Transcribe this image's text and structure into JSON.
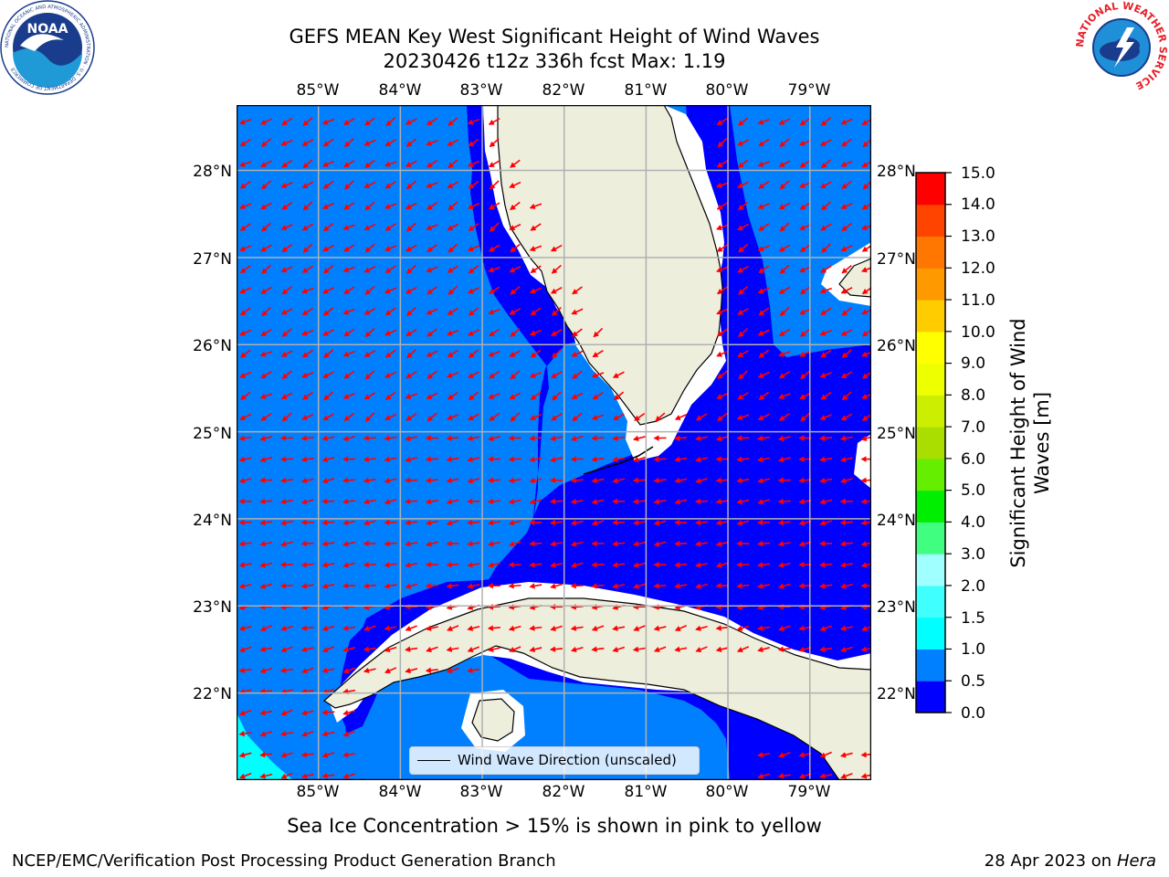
{
  "title": {
    "line1": "GEFS MEAN Key West Significant Height of Wind Waves",
    "line2": "20230426 t12z 336h fcst   Max: 1.19"
  },
  "axes": {
    "lon_labels": [
      "85°W",
      "84°W",
      "83°W",
      "82°W",
      "81°W",
      "80°W",
      "79°W"
    ],
    "lat_labels": [
      "28°N",
      "27°N",
      "26°N",
      "25°N",
      "24°N",
      "23°N",
      "22°N"
    ],
    "lon_range": [
      -86.0,
      -78.25
    ],
    "lat_range": [
      21.0,
      28.75
    ],
    "gridlines": true
  },
  "legend": {
    "label": "Wind Wave Direction (unscaled)"
  },
  "colorbar": {
    "label_line1": "Significant Height of Wind",
    "label_line2": "Waves [m]",
    "tick_labels": [
      "15.0",
      "14.0",
      "13.0",
      "12.0",
      "11.0",
      "10.0",
      "9.0",
      "8.0",
      "7.0",
      "6.0",
      "5.0",
      "4.0",
      "3.0",
      "2.0",
      "1.5",
      "1.0",
      "0.5",
      "0.0"
    ],
    "levels": [
      0.0,
      0.5,
      1.0,
      1.5,
      2.0,
      3.0,
      4.0,
      5.0,
      6.0,
      7.0,
      8.0,
      9.0,
      10.0,
      11.0,
      12.0,
      13.0,
      14.0,
      15.0
    ],
    "colors": [
      "#0000ff",
      "#0080ff",
      "#00ffff",
      "#40ffff",
      "#a0ffff",
      "#40ff80",
      "#00ee00",
      "#66ee00",
      "#aadd00",
      "#ccee00",
      "#eeff00",
      "#ffff00",
      "#ffcc00",
      "#ff9900",
      "#ff7700",
      "#ff4400",
      "#ff0000"
    ]
  },
  "note": "Sea Ice Concentration > 15% is shown in pink to yellow",
  "footer": {
    "left": "NCEP/EMC/Verification Post Processing Product Generation Branch",
    "right_date": "28 Apr 2023 on ",
    "right_machine": "Hera"
  },
  "logos": {
    "noaa_text": "NOAA",
    "noaa_ring": "NATIONAL OCEANIC AND ATMOSPHERIC ADMINISTRATION · U.S. DEPARTMENT OF COMMERCE",
    "nws_ring": "NATIONAL WEATHER SERVICE"
  },
  "map_colors": {
    "land": "#eeeedd",
    "coast": "#000000",
    "vector": "#ff0000",
    "grid": "#b0b0b0",
    "nodata": "#ffffff"
  },
  "map_data": {
    "wind_wave_height_max_m": 1.19
  }
}
